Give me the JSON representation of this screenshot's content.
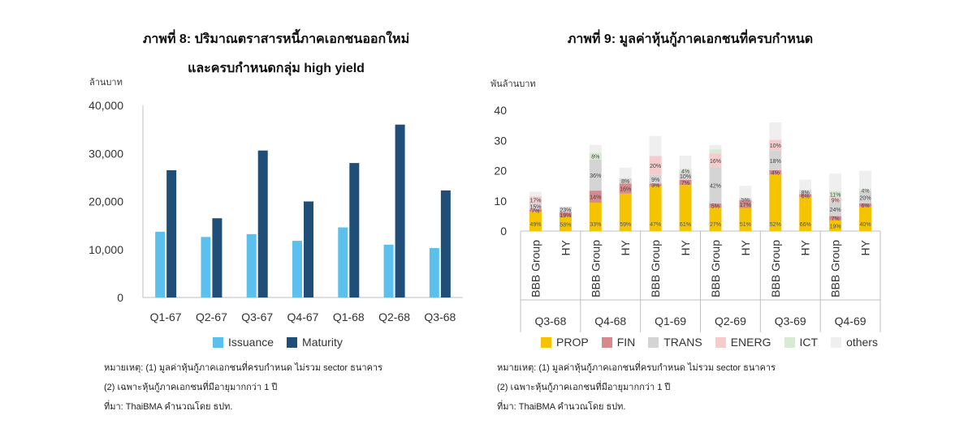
{
  "left": {
    "note_lines": [
      "หมายเหตุ: (1) มูลค่าหุ้นกู้ภาคเอกชนที่ครบกำหนด ไม่รวม sector ธนาคาร",
      "(2) เฉพาะหุ้นกู้ภาคเอกชนที่มีอายุมากกว่า 1 ปี",
      "ที่มา: ThaiBMA คำนวณโดย ธปท."
    ]
  },
  "right": {
    "note_lines": [
      "หมายเหตุ: (1) มูลค่าหุ้นกู้ภาคเอกชนที่ครบกำหนด ไม่รวม sector ธนาคาร",
      "(2) เฉพาะหุ้นกู้ภาคเอกชนที่มีอายุมากกว่า 1 ปี",
      "ที่มา: ThaiBMA คำนวณโดย ธปท."
    ]
  },
  "chart_data": [
    {
      "type": "bar",
      "title_line1": "ภาพที่ 8: ปริมาณตราสารหนี้ภาคเอกชนออกใหม่",
      "title_line2": "และครบกำหนดกลุ่ม high yield",
      "ylabel": "ล้านบาท",
      "categories": [
        "Q1-67",
        "Q2-67",
        "Q3-67",
        "Q4-67",
        "Q1-68",
        "Q2-68",
        "Q3-68"
      ],
      "yticks": [
        "0",
        "10,000",
        "20,000",
        "30,000",
        "40,000"
      ],
      "ylim": [
        0,
        40000
      ],
      "series": [
        {
          "name": "Issuance",
          "color": "#5bc0eb",
          "values": [
            13700,
            12600,
            13200,
            11800,
            14600,
            11000,
            10300
          ]
        },
        {
          "name": "Maturity",
          "color": "#1f4e79",
          "values": [
            26500,
            16500,
            30600,
            20000,
            28000,
            36000,
            22300
          ]
        }
      ],
      "legend_position": "bottom"
    },
    {
      "type": "bar",
      "stacked": true,
      "title": "ภาพที่ 9: มูลค่าหุ้นกู้ภาคเอกชนที่ครบกำหนด",
      "ylabel": "พันล้านบาท",
      "yticks": [
        "0",
        "10",
        "20",
        "30",
        "40"
      ],
      "ylim": [
        0,
        40
      ],
      "groups": [
        "Q3-68",
        "Q4-68",
        "Q1-69",
        "Q2-69",
        "Q3-69",
        "Q4-69"
      ],
      "sub_categories": [
        "BBB Group",
        "HY"
      ],
      "series": [
        {
          "name": "PROP",
          "color": "#f5c400"
        },
        {
          "name": "FIN",
          "color": "#d9898c"
        },
        {
          "name": "TRANS",
          "color": "#d4d4d4"
        },
        {
          "name": "ENERG",
          "color": "#f4cccc"
        },
        {
          "name": "ICT",
          "color": "#d9ead3"
        },
        {
          "name": "others",
          "color": "#efefef"
        }
      ],
      "bars": [
        {
          "group": "Q3-68",
          "sub": "BBB Group",
          "total": 13,
          "shares": [
            49,
            7,
            15,
            17,
            0,
            12
          ],
          "labels": [
            "49%",
            "7%",
            "15%",
            "17%",
            "",
            ""
          ]
        },
        {
          "group": "Q3-68",
          "sub": "HY",
          "total": 8,
          "shares": [
            58,
            19,
            23,
            0,
            0,
            0
          ],
          "labels": [
            "58%",
            "19%",
            "23%",
            "",
            "",
            ""
          ]
        },
        {
          "group": "Q4-68",
          "sub": "BBB Group",
          "total": 28.5,
          "shares": [
            33,
            14,
            36,
            0,
            8,
            9
          ],
          "labels": [
            "33%",
            "14%",
            "36%",
            "",
            "8%",
            ""
          ]
        },
        {
          "group": "Q4-68",
          "sub": "HY",
          "total": 21,
          "shares": [
            59,
            16,
            8,
            0,
            0,
            17
          ],
          "labels": [
            "59%",
            "16%",
            "8%",
            "",
            "",
            ""
          ]
        },
        {
          "group": "Q1-69",
          "sub": "BBB Group",
          "total": 31.5,
          "shares": [
            47,
            3,
            9,
            20,
            0,
            21
          ],
          "labels": [
            "47%",
            "3%",
            "9%",
            "20%",
            "",
            ""
          ]
        },
        {
          "group": "Q1-69",
          "sub": "HY",
          "total": 25,
          "shares": [
            61,
            7,
            10,
            0,
            4,
            18
          ],
          "labels": [
            "61%",
            "7%",
            "10%",
            "",
            "4%",
            ""
          ]
        },
        {
          "group": "Q2-69",
          "sub": "BBB Group",
          "total": 28.5,
          "shares": [
            27,
            5,
            42,
            16,
            5,
            5
          ],
          "labels": [
            "27%",
            "5%",
            "42%",
            "16%",
            "",
            ""
          ]
        },
        {
          "group": "Q2-69",
          "sub": "HY",
          "total": 15,
          "shares": [
            51,
            17,
            5,
            0,
            0,
            27
          ],
          "labels": [
            "51%",
            "17%",
            "5%",
            "",
            "",
            ""
          ]
        },
        {
          "group": "Q3-69",
          "sub": "BBB Group",
          "total": 36,
          "shares": [
            52,
            4,
            18,
            10,
            0,
            16
          ],
          "labels": [
            "52%",
            "4%",
            "18%",
            "10%",
            "",
            ""
          ]
        },
        {
          "group": "Q3-69",
          "sub": "HY",
          "total": 17,
          "shares": [
            66,
            6,
            8,
            0,
            0,
            20
          ],
          "labels": [
            "66%",
            "6%",
            "8%",
            "",
            "",
            ""
          ]
        },
        {
          "group": "Q4-69",
          "sub": "BBB Group",
          "total": 19,
          "shares": [
            19,
            7,
            24,
            9,
            11,
            30
          ],
          "labels": [
            "19%",
            "7%",
            "24%",
            "9%",
            "11%",
            ""
          ]
        },
        {
          "group": "Q4-69",
          "sub": "HY",
          "total": 20,
          "shares": [
            40,
            6,
            20,
            0,
            4,
            30
          ],
          "labels": [
            "40%",
            "6%",
            "20%",
            "",
            "4%",
            ""
          ]
        }
      ],
      "legend_position": "bottom"
    }
  ]
}
